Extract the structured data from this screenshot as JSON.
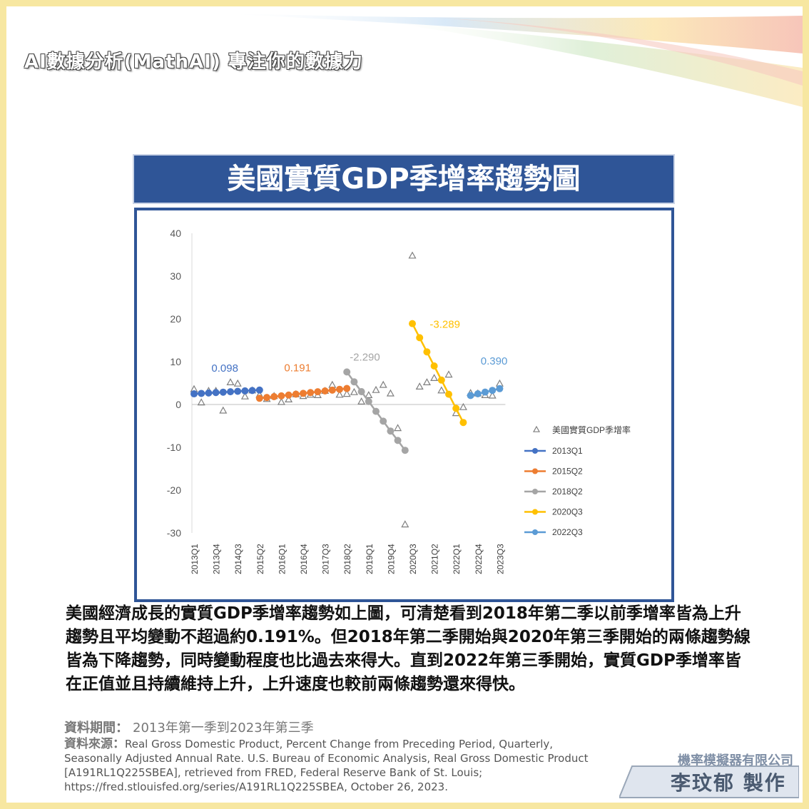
{
  "brand": "AI數據分析(MathAI) 專注你的數據力",
  "title": "美國實質GDP季增率趨勢圖",
  "description": "美國經濟成長的實質GDP季增率趨勢如上圖，可清楚看到2018年第二季以前季增率皆為上升趨勢且平均變動不超過約0.191%。但2018年第二季開始與2020年第三季開始的兩條趨勢線皆為下降趨勢，同時變動程度也比過去來得大。直到2022年第三季開始，實質GDP季增率皆在正值並且持續維持上升，上升速度也較前兩條趨勢還來得快。",
  "period_label": "資料期間：",
  "period_value": "2013年第一季到2023年第三季",
  "source_label": "資料來源：",
  "source_text": "Real Gross Domestic Product, Percent Change from Preceding Period, Quarterly, Seasonally Adjusted Annual Rate. U.S. Bureau of Economic Analysis, Real Gross Domestic Product [A191RL1Q225SBEA], retrieved from FRED, Federal Reserve Bank of St. Louis; https://fred.stlouisfed.org/series/A191RL1Q225SBEA, October 26, 2023.",
  "company": "機率模擬器有限公司",
  "maker": "李玟郁 製作",
  "chart_data": {
    "type": "scatter",
    "ylim": [
      -30,
      40
    ],
    "yticks": [
      40,
      30,
      20,
      10,
      0,
      -10,
      -20,
      -30
    ],
    "x_tick_labels": [
      "2013Q1",
      "2013Q4",
      "2014Q3",
      "2015Q2",
      "2016Q1",
      "2016Q4",
      "2017Q3",
      "2018Q2",
      "2019Q1",
      "2019Q4",
      "2020Q3",
      "2021Q2",
      "2022Q1",
      "2022Q4",
      "2023Q3"
    ],
    "scatter_name": "美國實質GDP季增率",
    "scatter_values": [
      3.6,
      0.5,
      3.2,
      3.2,
      -1.4,
      5.2,
      4.9,
      1.9,
      3.3,
      2.3,
      1.3,
      2.0,
      0.6,
      1.2,
      2.4,
      2.0,
      2.3,
      2.2,
      3.2,
      4.6,
      2.3,
      2.5,
      2.9,
      0.7,
      2.2,
      3.4,
      4.6,
      2.6,
      -5.5,
      -28.0,
      34.8,
      4.2,
      5.2,
      6.2,
      3.3,
      7.0,
      -2.0,
      -0.6,
      2.7,
      2.6,
      2.2,
      2.1,
      4.9
    ],
    "trend_series": [
      {
        "name": "2013Q1",
        "color": "#4472c4",
        "label": "0.098",
        "start": 0,
        "values": [
          2.49,
          2.59,
          2.69,
          2.79,
          2.88,
          2.98,
          3.08,
          3.18,
          3.27,
          3.37
        ]
      },
      {
        "name": "2015Q2",
        "color": "#ed7d31",
        "label": "0.191",
        "start": 9,
        "values": [
          1.45,
          1.64,
          1.83,
          2.02,
          2.21,
          2.41,
          2.6,
          2.79,
          2.98,
          3.17,
          3.36,
          3.55,
          3.74
        ]
      },
      {
        "name": "2018Q2",
        "color": "#a5a5a5",
        "label": "-2.290",
        "start": 21,
        "values": [
          7.6,
          5.3,
          3.0,
          0.7,
          -1.6,
          -3.9,
          -6.2,
          -8.4,
          -10.7
        ]
      },
      {
        "name": "2020Q3",
        "color": "#ffc000",
        "label": "-3.289",
        "start": 30,
        "values": [
          18.9,
          15.6,
          12.3,
          9.0,
          5.7,
          2.4,
          -0.9,
          -4.2
        ]
      },
      {
        "name": "2022Q3",
        "color": "#5b9bd5",
        "label": "0.390",
        "start": 38,
        "values": [
          2.1,
          2.5,
          2.9,
          3.3,
          3.7
        ]
      }
    ]
  }
}
